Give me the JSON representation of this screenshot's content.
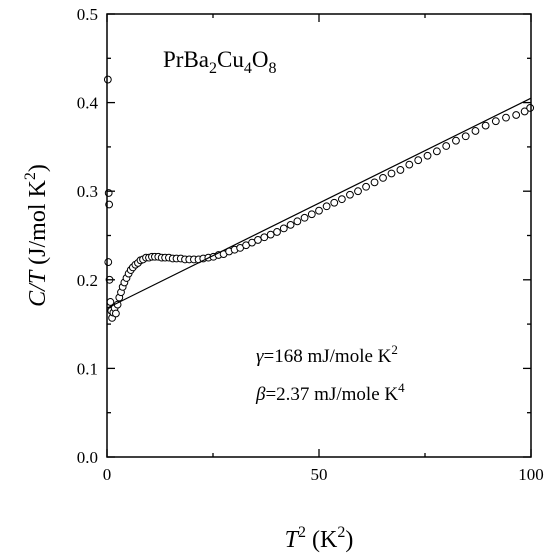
{
  "chart_data": {
    "type": "scatter",
    "title": "",
    "compound_label": {
      "base": "PrBa",
      "sub1": "2",
      "mid1": "Cu",
      "sub2": "4",
      "mid2": "O",
      "sub3": "8"
    },
    "xlabel": {
      "var": "T",
      "sup": "2",
      "unit_open": " (K",
      "unit_sup": "2",
      "unit_close": ")"
    },
    "ylabel": {
      "var": "C/T",
      "unit_open": " (J/mol K",
      "unit_sup": "2",
      "unit_close": ")"
    },
    "xlim": [
      0,
      100
    ],
    "ylim": [
      0.0,
      0.5
    ],
    "x_ticks": [
      "0",
      "50",
      "100"
    ],
    "y_ticks": [
      "0.0",
      "0.1",
      "0.2",
      "0.3",
      "0.4",
      "0.5"
    ],
    "grid": false,
    "annotations": [
      {
        "symbol": "γ",
        "text": "=168 mJ/mole K",
        "sup": "2"
      },
      {
        "symbol": "β",
        "text": "=2.37 mJ/mole K",
        "sup": "4"
      }
    ],
    "series": [
      {
        "style": "open-circles",
        "points": [
          [
            0.2,
            0.426
          ],
          [
            0.4,
            0.298
          ],
          [
            0.5,
            0.285
          ],
          [
            0.3,
            0.22
          ],
          [
            0.6,
            0.2
          ],
          [
            0.8,
            0.175
          ],
          [
            1.0,
            0.165
          ],
          [
            1.2,
            0.157
          ],
          [
            1.5,
            0.163
          ],
          [
            1.8,
            0.168
          ],
          [
            2.1,
            0.162
          ],
          [
            2.5,
            0.172
          ],
          [
            2.9,
            0.18
          ],
          [
            3.3,
            0.186
          ],
          [
            3.7,
            0.192
          ],
          [
            4.1,
            0.197
          ],
          [
            4.6,
            0.202
          ],
          [
            5.1,
            0.207
          ],
          [
            5.6,
            0.211
          ],
          [
            6.1,
            0.214
          ],
          [
            6.7,
            0.217
          ],
          [
            7.3,
            0.219
          ],
          [
            7.9,
            0.222
          ],
          [
            8.5,
            0.223
          ],
          [
            9.2,
            0.225
          ],
          [
            9.9,
            0.225
          ],
          [
            10.6,
            0.226
          ],
          [
            11.3,
            0.226
          ],
          [
            12.1,
            0.226
          ],
          [
            12.9,
            0.225
          ],
          [
            13.7,
            0.225
          ],
          [
            14.6,
            0.225
          ],
          [
            15.5,
            0.224
          ],
          [
            16.4,
            0.224
          ],
          [
            17.4,
            0.224
          ],
          [
            18.4,
            0.223
          ],
          [
            19.4,
            0.223
          ],
          [
            20.5,
            0.223
          ],
          [
            21.6,
            0.223
          ],
          [
            22.7,
            0.224
          ],
          [
            23.9,
            0.225
          ],
          [
            25.1,
            0.226
          ],
          [
            26.3,
            0.228
          ],
          [
            27.5,
            0.229
          ],
          [
            28.8,
            0.232
          ],
          [
            30.1,
            0.234
          ],
          [
            31.4,
            0.236
          ],
          [
            32.8,
            0.239
          ],
          [
            34.2,
            0.242
          ],
          [
            35.6,
            0.245
          ],
          [
            37.1,
            0.248
          ],
          [
            38.6,
            0.251
          ],
          [
            40.1,
            0.254
          ],
          [
            41.7,
            0.258
          ],
          [
            43.3,
            0.262
          ],
          [
            44.9,
            0.266
          ],
          [
            46.6,
            0.27
          ],
          [
            48.3,
            0.274
          ],
          [
            50.0,
            0.278
          ],
          [
            51.8,
            0.283
          ],
          [
            53.6,
            0.287
          ],
          [
            55.4,
            0.291
          ],
          [
            57.3,
            0.296
          ],
          [
            59.2,
            0.3
          ],
          [
            61.1,
            0.305
          ],
          [
            63.1,
            0.31
          ],
          [
            65.1,
            0.315
          ],
          [
            67.1,
            0.32
          ],
          [
            69.2,
            0.324
          ],
          [
            71.3,
            0.33
          ],
          [
            73.4,
            0.335
          ],
          [
            75.6,
            0.34
          ],
          [
            77.8,
            0.345
          ],
          [
            80.0,
            0.351
          ],
          [
            82.3,
            0.357
          ],
          [
            84.6,
            0.362
          ],
          [
            86.9,
            0.368
          ],
          [
            89.3,
            0.374
          ],
          [
            91.7,
            0.379
          ],
          [
            94.1,
            0.383
          ],
          [
            96.5,
            0.386
          ],
          [
            98.5,
            0.39
          ],
          [
            99.8,
            0.394
          ]
        ]
      },
      {
        "style": "line",
        "points": [
          [
            0,
            0.168
          ],
          [
            100,
            0.405
          ]
        ]
      }
    ]
  }
}
